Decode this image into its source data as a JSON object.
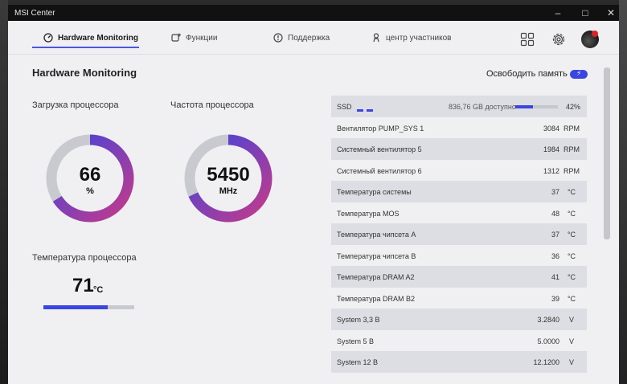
{
  "window": {
    "title": "MSI Center"
  },
  "nav": {
    "tabs": [
      {
        "label": "Hardware Monitoring",
        "icon": "gauge-icon"
      },
      {
        "label": "Функции",
        "icon": "plus-box-icon"
      },
      {
        "label": "Поддержка",
        "icon": "info-bubble-icon"
      },
      {
        "label": "центр участников",
        "icon": "user-icon"
      }
    ]
  },
  "page": {
    "title": "Hardware Monitoring",
    "free_memory_label": "Освободить память"
  },
  "cpu": {
    "load_label": "Загрузка процессора",
    "load_value": "66",
    "load_unit": "%",
    "load_fraction": 0.66,
    "freq_label": "Частота процессора",
    "freq_value": "5450",
    "freq_unit": "MHz",
    "freq_fraction": 0.68,
    "temp_label": "Температура процессора",
    "temp_value": "71",
    "temp_unit": "°C",
    "temp_fraction": 0.71
  },
  "ssd": {
    "name": "SSD",
    "free": "836,76 GB доступно",
    "percent": "42%",
    "used_fraction": 0.42
  },
  "sensors": [
    {
      "name": "Вентилятор PUMP_SYS 1",
      "value": "3084",
      "unit": "RPM"
    },
    {
      "name": "Системный вентилятор 5",
      "value": "1984",
      "unit": "RPM"
    },
    {
      "name": "Системный вентилятор 6",
      "value": "1312",
      "unit": "RPM"
    },
    {
      "name": "Температура системы",
      "value": "37",
      "unit": "°C"
    },
    {
      "name": "Температура MOS",
      "value": "48",
      "unit": "°C"
    },
    {
      "name": "Температура чипсета A",
      "value": "37",
      "unit": "°C"
    },
    {
      "name": "Температура чипсета B",
      "value": "36",
      "unit": "°C"
    },
    {
      "name": "Температура DRAM A2",
      "value": "41",
      "unit": "°C"
    },
    {
      "name": "Температура DRAM B2",
      "value": "39",
      "unit": "°C"
    },
    {
      "name": "System 3,3 В",
      "value": "3.2840",
      "unit": "V"
    },
    {
      "name": "System 5 В",
      "value": "5.0000",
      "unit": "V"
    },
    {
      "name": "System 12 В",
      "value": "12.1200",
      "unit": "V"
    }
  ],
  "colors": {
    "accent": "#3b45e0",
    "gradient_start": "#c43a8a",
    "gradient_end": "#3b45e0",
    "track": "#c8cad0"
  }
}
